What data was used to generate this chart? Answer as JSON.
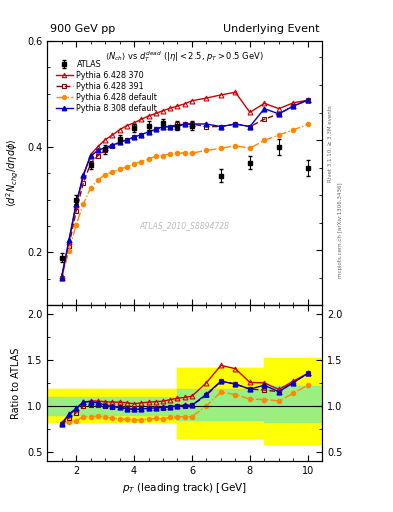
{
  "title_left": "900 GeV pp",
  "title_right": "Underlying Event",
  "ylabel_main": "$\\langle d^2 N_{chg}/d\\eta d\\phi \\rangle$",
  "ylabel_ratio": "Ratio to ATLAS",
  "xlabel": "$p_T$ (leading track) [GeV]",
  "subtitle": "$\\langle N_{ch} \\rangle$ vs $d_T^{dead}$ ($|\\eta| < 2.5$, $p_T > 0.5$ GeV)",
  "watermark": "ATLAS_2010_S8894728",
  "right_label1": "Rivet 3.1.10, ≥ 3.3M events",
  "right_label2": "mcplots.cern.ch [arXiv:1306.3436]",
  "ylim_main": [
    0.1,
    0.58
  ],
  "ylim_ratio": [
    0.4,
    2.1
  ],
  "xlim": [
    1.0,
    10.5
  ],
  "atlas_x": [
    1.5,
    2.0,
    2.5,
    3.0,
    3.5,
    4.0,
    4.5,
    5.0,
    5.5,
    6.0,
    7.0,
    8.0,
    9.0,
    10.0
  ],
  "atlas_y": [
    0.19,
    0.3,
    0.365,
    0.395,
    0.415,
    0.435,
    0.44,
    0.445,
    0.44,
    0.44,
    0.345,
    0.37,
    0.4,
    0.36
  ],
  "atlas_yerr": [
    0.008,
    0.008,
    0.008,
    0.008,
    0.008,
    0.008,
    0.008,
    0.008,
    0.008,
    0.008,
    0.012,
    0.012,
    0.015,
    0.015
  ],
  "py6_370_x": [
    1.5,
    1.75,
    2.0,
    2.25,
    2.5,
    2.75,
    3.0,
    3.25,
    3.5,
    3.75,
    4.0,
    4.25,
    4.5,
    4.75,
    5.0,
    5.25,
    5.5,
    5.75,
    6.0,
    6.5,
    7.0,
    7.5,
    8.0,
    8.5,
    9.0,
    9.5,
    10.0
  ],
  "py6_370_y": [
    0.155,
    0.22,
    0.29,
    0.345,
    0.385,
    0.4,
    0.413,
    0.422,
    0.432,
    0.44,
    0.445,
    0.452,
    0.458,
    0.463,
    0.468,
    0.473,
    0.477,
    0.481,
    0.487,
    0.492,
    0.498,
    0.503,
    0.465,
    0.482,
    0.472,
    0.483,
    0.488
  ],
  "py6_391_x": [
    1.5,
    1.75,
    2.0,
    2.25,
    2.5,
    2.75,
    3.0,
    3.25,
    3.5,
    3.75,
    4.0,
    4.25,
    4.5,
    4.75,
    5.0,
    5.25,
    5.5,
    5.75,
    6.0,
    6.5,
    7.0,
    7.5,
    8.0,
    8.5,
    9.0,
    9.5,
    10.0
  ],
  "py6_391_y": [
    0.152,
    0.213,
    0.278,
    0.332,
    0.368,
    0.383,
    0.393,
    0.402,
    0.408,
    0.413,
    0.418,
    0.423,
    0.428,
    0.433,
    0.437,
    0.438,
    0.442,
    0.442,
    0.443,
    0.438,
    0.438,
    0.443,
    0.438,
    0.452,
    0.462,
    0.477,
    0.488
  ],
  "py6_def_x": [
    1.5,
    1.75,
    2.0,
    2.25,
    2.5,
    2.75,
    3.0,
    3.25,
    3.5,
    3.75,
    4.0,
    4.25,
    4.5,
    4.75,
    5.0,
    5.25,
    5.5,
    5.75,
    6.0,
    6.5,
    7.0,
    7.5,
    8.0,
    8.5,
    9.0,
    9.5,
    10.0
  ],
  "py6_def_y": [
    0.152,
    0.203,
    0.252,
    0.292,
    0.322,
    0.337,
    0.347,
    0.352,
    0.357,
    0.362,
    0.367,
    0.372,
    0.377,
    0.382,
    0.383,
    0.387,
    0.388,
    0.388,
    0.388,
    0.393,
    0.397,
    0.402,
    0.397,
    0.412,
    0.422,
    0.432,
    0.442
  ],
  "py8_def_x": [
    1.5,
    1.75,
    2.0,
    2.25,
    2.5,
    2.75,
    3.0,
    3.25,
    3.5,
    3.75,
    4.0,
    4.25,
    4.5,
    4.75,
    5.0,
    5.25,
    5.5,
    5.75,
    6.0,
    6.5,
    7.0,
    7.5,
    8.0,
    8.5,
    9.0,
    9.5,
    10.0
  ],
  "py8_def_y": [
    0.152,
    0.223,
    0.292,
    0.347,
    0.382,
    0.393,
    0.398,
    0.403,
    0.408,
    0.413,
    0.418,
    0.423,
    0.428,
    0.433,
    0.438,
    0.438,
    0.438,
    0.443,
    0.443,
    0.443,
    0.438,
    0.443,
    0.438,
    0.472,
    0.462,
    0.477,
    0.488
  ],
  "color_py6_370": "#cc0000",
  "color_py6_391": "#880000",
  "color_py6_def": "#ff8800",
  "color_py8_def": "#0000cc",
  "band_yellow_lo": [
    0.82,
    0.82,
    0.65,
    0.65,
    0.58,
    0.58
  ],
  "band_yellow_hi": [
    1.18,
    1.18,
    1.42,
    1.42,
    1.52,
    1.52
  ],
  "band_green_lo": [
    0.9,
    0.9,
    0.85,
    0.85,
    0.82,
    0.82
  ],
  "band_green_hi": [
    1.1,
    1.1,
    1.18,
    1.18,
    1.22,
    1.22
  ],
  "band_x_edges": [
    1.0,
    5.5,
    5.5,
    8.5,
    8.5,
    10.5
  ]
}
